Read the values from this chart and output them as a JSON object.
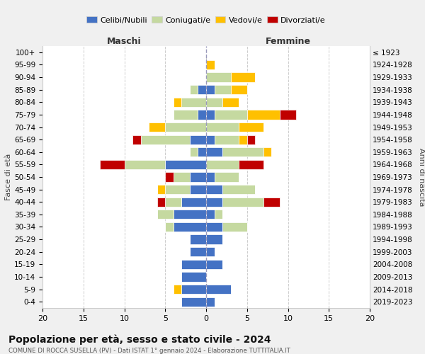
{
  "age_groups": [
    "0-4",
    "5-9",
    "10-14",
    "15-19",
    "20-24",
    "25-29",
    "30-34",
    "35-39",
    "40-44",
    "45-49",
    "50-54",
    "55-59",
    "60-64",
    "65-69",
    "70-74",
    "75-79",
    "80-84",
    "85-89",
    "90-94",
    "95-99",
    "100+"
  ],
  "birth_years": [
    "2019-2023",
    "2014-2018",
    "2009-2013",
    "2004-2008",
    "1999-2003",
    "1994-1998",
    "1989-1993",
    "1984-1988",
    "1979-1983",
    "1974-1978",
    "1969-1973",
    "1964-1968",
    "1959-1963",
    "1954-1958",
    "1949-1953",
    "1944-1948",
    "1939-1943",
    "1934-1938",
    "1929-1933",
    "1924-1928",
    "≤ 1923"
  ],
  "colors": {
    "celibi": "#4472c4",
    "coniugati": "#c5d9a0",
    "vedovi": "#ffc000",
    "divorziati": "#c00000"
  },
  "males": {
    "celibi": [
      3,
      3,
      3,
      3,
      2,
      2,
      4,
      4,
      3,
      2,
      2,
      5,
      1,
      2,
      0,
      1,
      0,
      1,
      0,
      0,
      0
    ],
    "coniugati": [
      0,
      0,
      0,
      0,
      0,
      0,
      1,
      2,
      2,
      3,
      2,
      5,
      1,
      6,
      5,
      3,
      3,
      1,
      0,
      0,
      0
    ],
    "vedovi": [
      0,
      1,
      0,
      0,
      0,
      0,
      0,
      0,
      0,
      1,
      0,
      0,
      0,
      0,
      2,
      0,
      1,
      0,
      0,
      0,
      0
    ],
    "divorziati": [
      0,
      0,
      0,
      0,
      0,
      0,
      0,
      0,
      1,
      0,
      1,
      3,
      0,
      1,
      0,
      0,
      0,
      0,
      0,
      0,
      0
    ]
  },
  "females": {
    "celibi": [
      1,
      3,
      0,
      2,
      1,
      2,
      2,
      1,
      2,
      2,
      1,
      0,
      2,
      1,
      0,
      1,
      0,
      1,
      0,
      0,
      0
    ],
    "coniugati": [
      0,
      0,
      0,
      0,
      0,
      0,
      3,
      1,
      5,
      4,
      3,
      4,
      5,
      3,
      4,
      4,
      2,
      2,
      3,
      0,
      0
    ],
    "vedovi": [
      0,
      0,
      0,
      0,
      0,
      0,
      0,
      0,
      0,
      0,
      0,
      0,
      1,
      1,
      3,
      4,
      2,
      2,
      3,
      1,
      0
    ],
    "divorziati": [
      0,
      0,
      0,
      0,
      0,
      0,
      0,
      0,
      2,
      0,
      0,
      3,
      0,
      1,
      0,
      2,
      0,
      0,
      0,
      0,
      0
    ]
  },
  "xlim": 20,
  "title": "Popolazione per età, sesso e stato civile - 2024",
  "subtitle": "COMUNE DI ROCCA SUSELLA (PV) - Dati ISTAT 1° gennaio 2024 - Elaborazione TUTTITALIA.IT",
  "ylabel_left": "Fasce di età",
  "ylabel_right": "Anni di nascita",
  "xlabel_left": "Maschi",
  "xlabel_right": "Femmine",
  "legend_labels": [
    "Celibi/Nubili",
    "Coniugati/e",
    "Vedovi/e",
    "Divorziati/e"
  ],
  "bg_color": "#f0f0f0",
  "plot_bg": "#ffffff"
}
